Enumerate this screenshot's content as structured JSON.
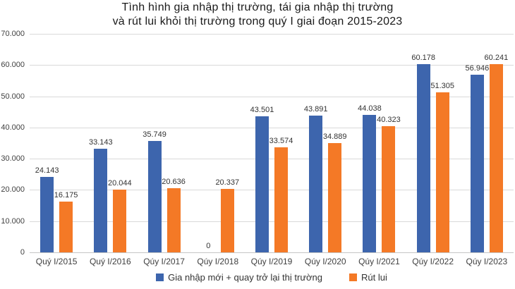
{
  "title": {
    "line1": "Tình hình gia nhập thị trường, tái gia nhập thị trường",
    "line2": "và rút lui khỏi thị trường trong quý I giai đoạn 2015-2023"
  },
  "colors": {
    "blue": "#3d65ad",
    "orange": "#f47926",
    "grid": "#d9d9d9",
    "axis_text": "#404040",
    "title_text": "#1a1a1a"
  },
  "chart_data": {
    "type": "bar",
    "title": "Tình hình gia nhập thị trường, tái gia nhập thị trường và rút lui khỏi thị trường trong quý I giai đoạn 2015-2023",
    "categories": [
      "Quý I/2015",
      "Quý I/2016",
      "Qúy I/2017",
      "Qúy I/2018",
      "Qúy I/2019",
      "Qúy I/2020",
      "Qúy I/2021",
      "Qúy I/2022",
      "Qúy I/2023"
    ],
    "series": [
      {
        "key": "new-entry",
        "name": "Gia nhập mới + quay trở lại thị trường",
        "color": "#3d65ad",
        "values": [
          24143,
          33143,
          35749,
          0,
          43501,
          43891,
          44038,
          60178,
          56946
        ]
      },
      {
        "key": "withdrawal",
        "name": "Rút lui",
        "color": "#f47926",
        "values": [
          16175,
          20044,
          20636,
          20337,
          33574,
          34889,
          40323,
          51305,
          60241
        ]
      }
    ],
    "xlabel": "",
    "ylabel": "",
    "ylim": [
      0,
      70000
    ],
    "y_ticks": [
      "70.000",
      "60.000",
      "50.000",
      "40.000",
      "30.000",
      "20.000",
      "10.000",
      "0"
    ],
    "thousands_separator": ".",
    "grid": true,
    "legend_position": "bottom",
    "data_labels": true
  }
}
